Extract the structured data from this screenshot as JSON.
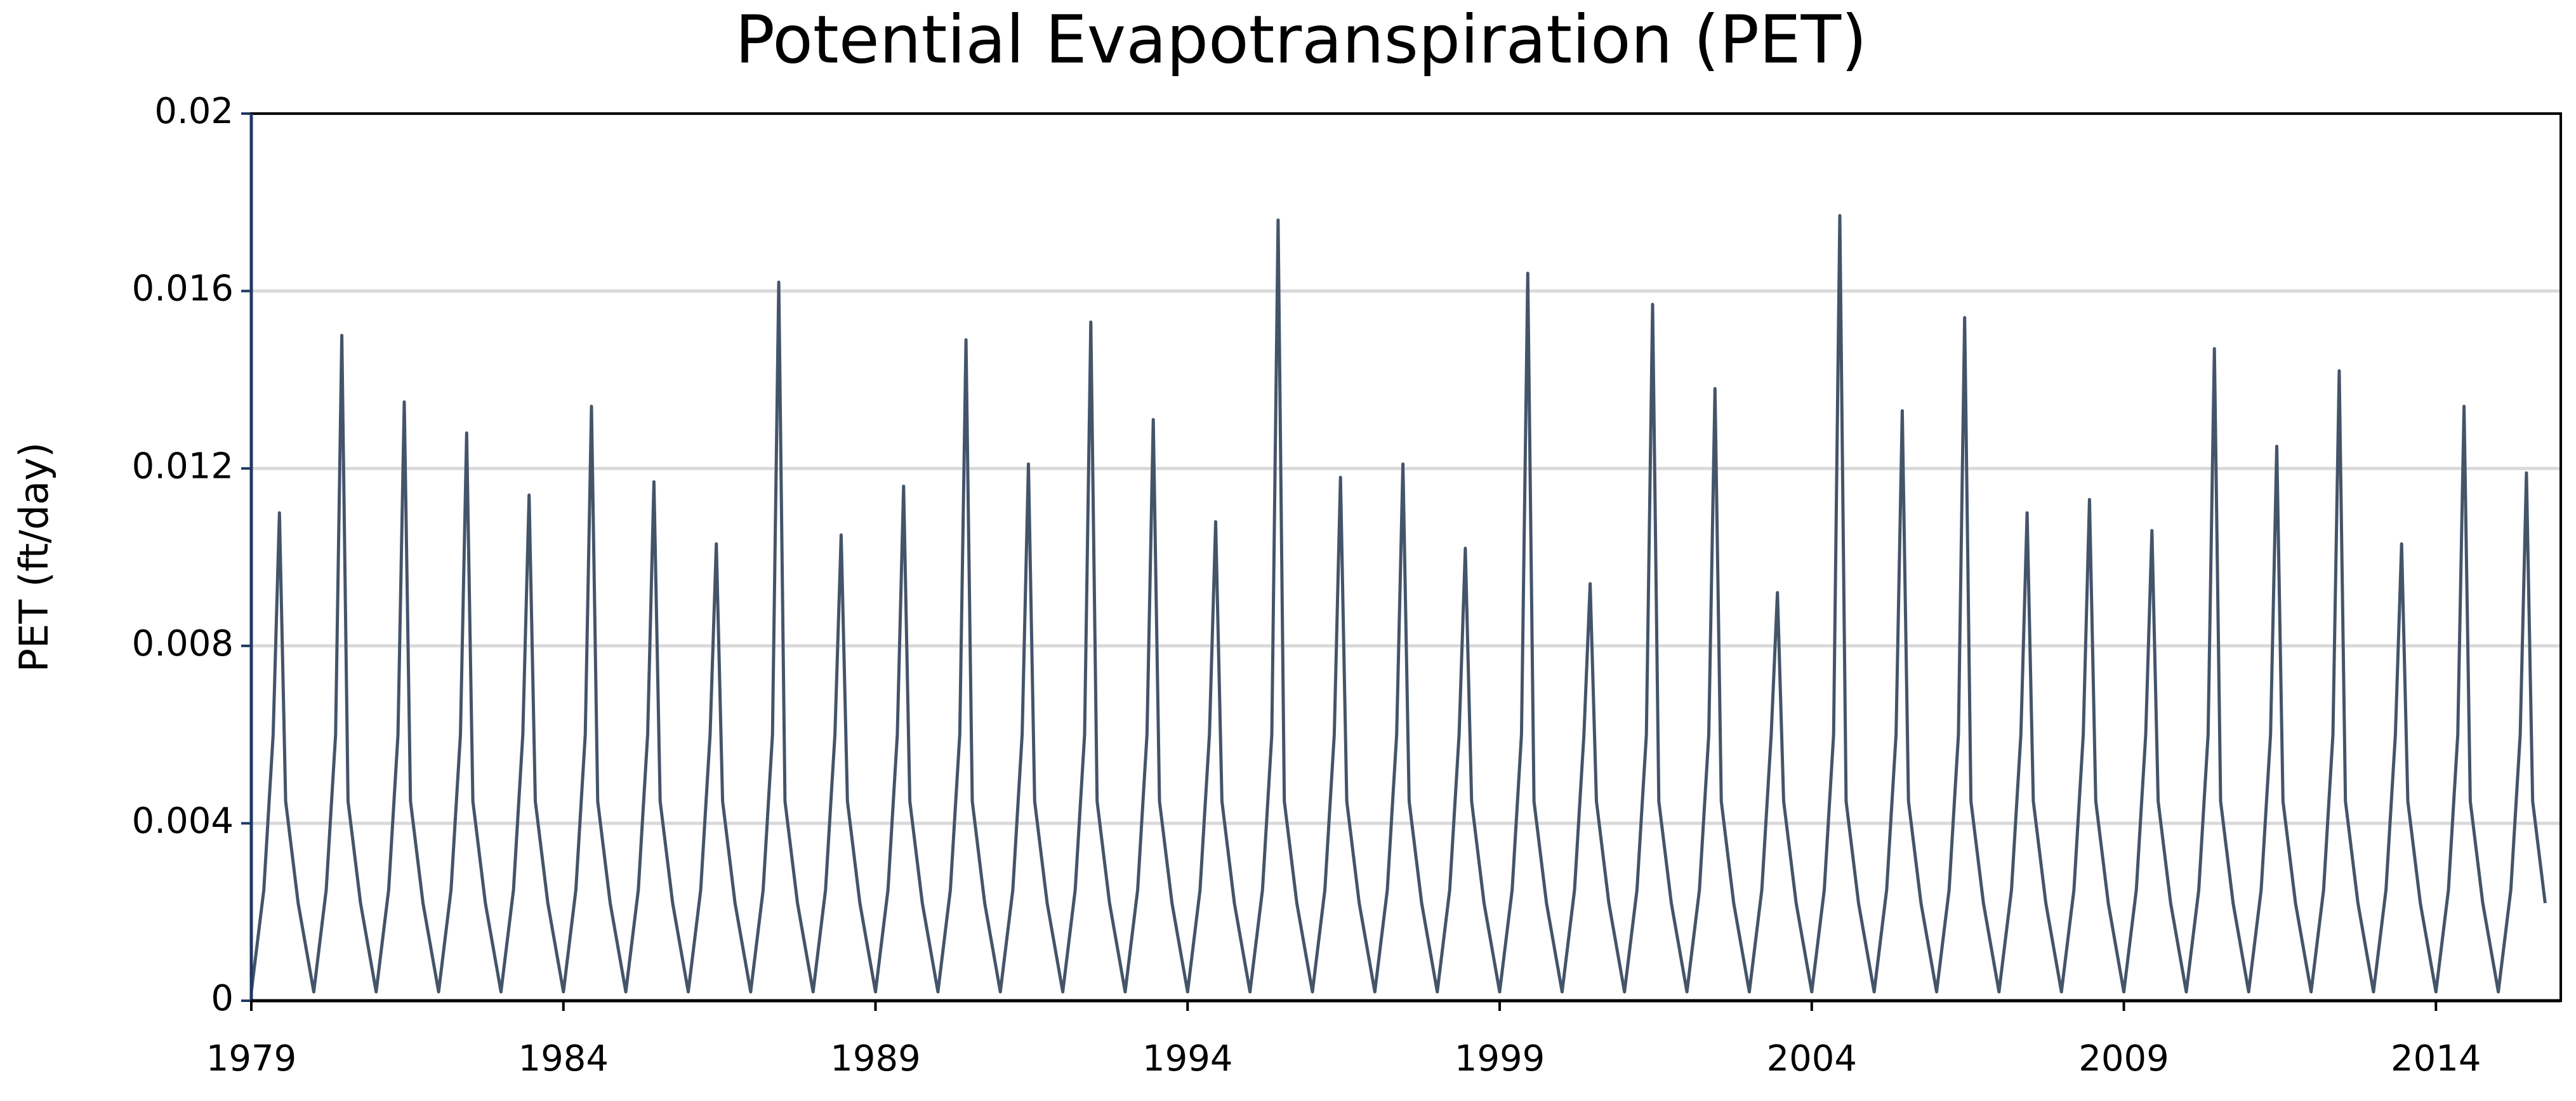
{
  "chart_data": {
    "type": "line",
    "title": "Potential Evapotranspiration (PET)",
    "y_label": "PET (ft/day)",
    "color": "#44546a",
    "grid": true,
    "xlim": [
      1979,
      2016
    ],
    "xticks": [
      1979,
      1984,
      1989,
      1994,
      1999,
      2004,
      2009,
      2014
    ],
    "ylim": [
      0,
      0.02
    ],
    "yticks": [
      0,
      0.004,
      0.008,
      0.012,
      0.016,
      0.02
    ],
    "x": [
      1979,
      1979.2,
      1979.35,
      1979.45,
      1979.55,
      1979.75,
      1980,
      1980.2,
      1980.35,
      1980.45,
      1980.55,
      1980.75,
      1981,
      1981.2,
      1981.35,
      1981.45,
      1981.55,
      1981.75,
      1982,
      1982.2,
      1982.35,
      1982.45,
      1982.55,
      1982.75,
      1983,
      1983.2,
      1983.35,
      1983.45,
      1983.55,
      1983.75,
      1984,
      1984.2,
      1984.35,
      1984.45,
      1984.55,
      1984.75,
      1985,
      1985.2,
      1985.35,
      1985.45,
      1985.55,
      1985.75,
      1986,
      1986.2,
      1986.35,
      1986.45,
      1986.55,
      1986.75,
      1987,
      1987.2,
      1987.35,
      1987.45,
      1987.55,
      1987.75,
      1988,
      1988.2,
      1988.35,
      1988.45,
      1988.55,
      1988.75,
      1989,
      1989.2,
      1989.35,
      1989.45,
      1989.55,
      1989.75,
      1990,
      1990.2,
      1990.35,
      1990.45,
      1990.55,
      1990.75,
      1991,
      1991.2,
      1991.35,
      1991.45,
      1991.55,
      1991.75,
      1992,
      1992.2,
      1992.35,
      1992.45,
      1992.55,
      1992.75,
      1993,
      1993.2,
      1993.35,
      1993.45,
      1993.55,
      1993.75,
      1994,
      1994.2,
      1994.35,
      1994.45,
      1994.55,
      1994.75,
      1995,
      1995.2,
      1995.35,
      1995.45,
      1995.55,
      1995.75,
      1996,
      1996.2,
      1996.35,
      1996.45,
      1996.55,
      1996.75,
      1997,
      1997.2,
      1997.35,
      1997.45,
      1997.55,
      1997.75,
      1998,
      1998.2,
      1998.35,
      1998.45,
      1998.55,
      1998.75,
      1999,
      1999.2,
      1999.35,
      1999.45,
      1999.55,
      1999.75,
      2000,
      2000.2,
      2000.35,
      2000.45,
      2000.55,
      2000.75,
      2001,
      2001.2,
      2001.35,
      2001.45,
      2001.55,
      2001.75,
      2002,
      2002.2,
      2002.35,
      2002.45,
      2002.55,
      2002.75,
      2003,
      2003.2,
      2003.35,
      2003.45,
      2003.55,
      2003.75,
      2004,
      2004.2,
      2004.35,
      2004.45,
      2004.55,
      2004.75,
      2005,
      2005.2,
      2005.35,
      2005.45,
      2005.55,
      2005.75,
      2006,
      2006.2,
      2006.35,
      2006.45,
      2006.55,
      2006.75,
      2007,
      2007.2,
      2007.35,
      2007.45,
      2007.55,
      2007.75,
      2008,
      2008.2,
      2008.35,
      2008.45,
      2008.55,
      2008.75,
      2009,
      2009.2,
      2009.35,
      2009.45,
      2009.55,
      2009.75,
      2010,
      2010.2,
      2010.35,
      2010.45,
      2010.55,
      2010.75,
      2011,
      2011.2,
      2011.35,
      2011.45,
      2011.55,
      2011.75,
      2012,
      2012.2,
      2012.35,
      2012.45,
      2012.55,
      2012.75,
      2013,
      2013.2,
      2013.35,
      2013.45,
      2013.55,
      2013.75,
      2014,
      2014.2,
      2014.35,
      2014.45,
      2014.55,
      2014.75,
      2015,
      2015.2,
      2015.35,
      2015.45,
      2015.55,
      2015.75
    ],
    "values": [
      0.0002,
      0.0025,
      0.006,
      0.011,
      0.0045,
      0.0022,
      0.0002,
      0.0025,
      0.006,
      0.015,
      0.0045,
      0.0022,
      0.0002,
      0.0025,
      0.006,
      0.0135,
      0.0045,
      0.0022,
      0.0002,
      0.0025,
      0.006,
      0.0128,
      0.0045,
      0.0022,
      0.0002,
      0.0025,
      0.006,
      0.0114,
      0.0045,
      0.0022,
      0.0002,
      0.0025,
      0.006,
      0.0134,
      0.0045,
      0.0022,
      0.0002,
      0.0025,
      0.006,
      0.0117,
      0.0045,
      0.0022,
      0.0002,
      0.0025,
      0.006,
      0.0103,
      0.0045,
      0.0022,
      0.0002,
      0.0025,
      0.006,
      0.0162,
      0.0045,
      0.0022,
      0.0002,
      0.0025,
      0.006,
      0.0105,
      0.0045,
      0.0022,
      0.0002,
      0.0025,
      0.006,
      0.0116,
      0.0045,
      0.0022,
      0.0002,
      0.0025,
      0.006,
      0.0149,
      0.0045,
      0.0022,
      0.0002,
      0.0025,
      0.006,
      0.0121,
      0.0045,
      0.0022,
      0.0002,
      0.0025,
      0.006,
      0.0153,
      0.0045,
      0.0022,
      0.0002,
      0.0025,
      0.006,
      0.0131,
      0.0045,
      0.0022,
      0.0002,
      0.0025,
      0.006,
      0.0108,
      0.0045,
      0.0022,
      0.0002,
      0.0025,
      0.006,
      0.0176,
      0.0045,
      0.0022,
      0.0002,
      0.0025,
      0.006,
      0.0118,
      0.0045,
      0.0022,
      0.0002,
      0.0025,
      0.006,
      0.0121,
      0.0045,
      0.0022,
      0.0002,
      0.0025,
      0.006,
      0.0102,
      0.0045,
      0.0022,
      0.0002,
      0.0025,
      0.006,
      0.0164,
      0.0045,
      0.0022,
      0.0002,
      0.0025,
      0.006,
      0.0094,
      0.0045,
      0.0022,
      0.0002,
      0.0025,
      0.006,
      0.0157,
      0.0045,
      0.0022,
      0.0002,
      0.0025,
      0.006,
      0.0138,
      0.0045,
      0.0022,
      0.0002,
      0.0025,
      0.006,
      0.0092,
      0.0045,
      0.0022,
      0.0002,
      0.0025,
      0.006,
      0.0177,
      0.0045,
      0.0022,
      0.0002,
      0.0025,
      0.006,
      0.0133,
      0.0045,
      0.0022,
      0.0002,
      0.0025,
      0.006,
      0.0154,
      0.0045,
      0.0022,
      0.0002,
      0.0025,
      0.006,
      0.011,
      0.0045,
      0.0022,
      0.0002,
      0.0025,
      0.006,
      0.0113,
      0.0045,
      0.0022,
      0.0002,
      0.0025,
      0.006,
      0.0106,
      0.0045,
      0.0022,
      0.0002,
      0.0025,
      0.006,
      0.0147,
      0.0045,
      0.0022,
      0.0002,
      0.0025,
      0.006,
      0.0125,
      0.0045,
      0.0022,
      0.0002,
      0.0025,
      0.006,
      0.0142,
      0.0045,
      0.0022,
      0.0002,
      0.0025,
      0.006,
      0.0103,
      0.0045,
      0.0022,
      0.0002,
      0.0025,
      0.006,
      0.0134,
      0.0045,
      0.0022,
      0.0002,
      0.0025,
      0.006,
      0.0119,
      0.0045,
      0.0022
    ]
  }
}
